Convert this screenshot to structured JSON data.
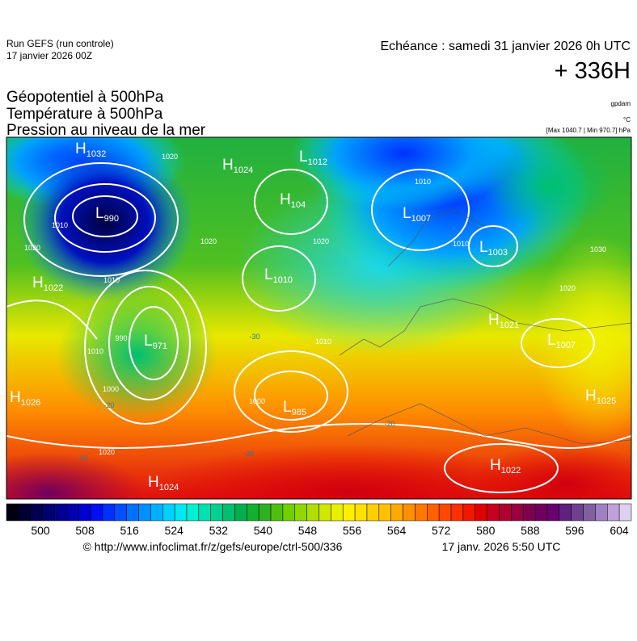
{
  "header": {
    "run": "Run GEFS (run controle)",
    "run_date": "17 janvier 2026 00Z",
    "valid": "Echéance : samedi 31 janvier 2026 0h UTC",
    "lead": "+ 336H"
  },
  "fields": [
    "Géopotentiel à 500hPa",
    "Température à 500hPa",
    "Pression au niveau de la mer"
  ],
  "units": {
    "geopotential": "gpdam",
    "temperature": "°C",
    "pressure_range": "[Max 1040.7 | Min 970.7] hPa"
  },
  "map": {
    "centers": [
      {
        "type": "H",
        "pressure": "1032"
      },
      {
        "type": "L",
        "pressure": "990"
      },
      {
        "type": "H",
        "pressure": "1022"
      },
      {
        "type": "L",
        "pressure": "971"
      },
      {
        "type": "H",
        "pressure": "1026"
      },
      {
        "type": "H",
        "pressure": "1024"
      },
      {
        "type": "L",
        "pressure": "1012"
      },
      {
        "type": "H",
        "pressure": "104"
      },
      {
        "type": "L",
        "pressure": "1010"
      },
      {
        "type": "L",
        "pressure": "985"
      },
      {
        "type": "H",
        "pressure": "1024"
      },
      {
        "type": "L",
        "pressure": "1007"
      },
      {
        "type": "L",
        "pressure": "1003"
      },
      {
        "type": "H",
        "pressure": "1021"
      },
      {
        "type": "L",
        "pressure": "1007"
      },
      {
        "type": "H",
        "pressure": "1025"
      },
      {
        "type": "H",
        "pressure": "1022"
      }
    ],
    "isobar_labels": [
      "1020",
      "1010",
      "1020",
      "1010",
      "1020",
      "1020",
      "1010",
      "1010",
      "1020",
      "1030",
      "1010",
      "1010",
      "1000",
      "1000",
      "1020",
      "990"
    ],
    "isotherm_labels": [
      "-30",
      "-20",
      "-20",
      "-10",
      "-30"
    ]
  },
  "colorbar": {
    "colors": [
      "#000010",
      "#000030",
      "#000050",
      "#000070",
      "#000090",
      "#0000b0",
      "#0000d0",
      "#0010f0",
      "#0030ff",
      "#0050ff",
      "#0070ff",
      "#0090ff",
      "#00b0ff",
      "#00d0ff",
      "#00e8f0",
      "#00f0d0",
      "#00e0b0",
      "#00d090",
      "#00c070",
      "#00b050",
      "#10b030",
      "#30b020",
      "#50c010",
      "#70d000",
      "#90d800",
      "#b0e000",
      "#d0e800",
      "#e8f000",
      "#fff000",
      "#ffe000",
      "#ffd000",
      "#ffc000",
      "#ffa800",
      "#ff9000",
      "#ff7800",
      "#ff6000",
      "#ff4800",
      "#ff3000",
      "#f01800",
      "#e00000",
      "#c80020",
      "#b00030",
      "#980040",
      "#800050",
      "#700060",
      "#680070",
      "#602080",
      "#704090",
      "#8060a0",
      "#a080c0",
      "#c0a0d8",
      "#e0d0f0"
    ],
    "ticks": [
      500,
      508,
      516,
      524,
      532,
      540,
      548,
      556,
      564,
      572,
      580,
      588,
      596,
      604
    ]
  },
  "footer": {
    "source": "© http://www.infoclimat.fr/z/gefs/europe/ctrl-500/336",
    "generated": "17 janv. 2026  5:50 UTC"
  }
}
